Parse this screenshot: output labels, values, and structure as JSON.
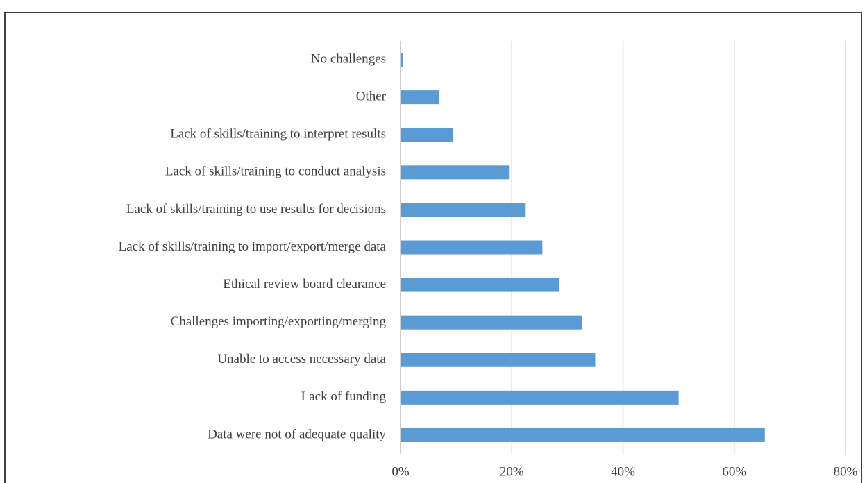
{
  "chart_data": {
    "type": "bar",
    "orientation": "horizontal",
    "categories": [
      "No challenges",
      "Other",
      "Lack of skills/training to interpret results",
      "Lack of skills/training to conduct analysis",
      "Lack of skills/training to use results for decisions",
      "Lack of skills/training to import/export/merge data",
      "Ethical review board clearance",
      "Challenges importing/exporting/merging",
      "Unable to access necessary data",
      "Lack of funding",
      "Data were not of adequate quality"
    ],
    "values": [
      0.5,
      7,
      9.5,
      19.5,
      22.5,
      25.5,
      28.5,
      32.7,
      35,
      50,
      65.5
    ],
    "color": "#5b9bd5",
    "xlim": [
      0,
      80
    ],
    "xticks": [
      {
        "value": 0,
        "label": "0%"
      },
      {
        "value": 20,
        "label": "20%"
      },
      {
        "value": 40,
        "label": "40%"
      },
      {
        "value": 60,
        "label": "60%"
      },
      {
        "value": 80,
        "label": "80%"
      }
    ],
    "grid": true
  }
}
